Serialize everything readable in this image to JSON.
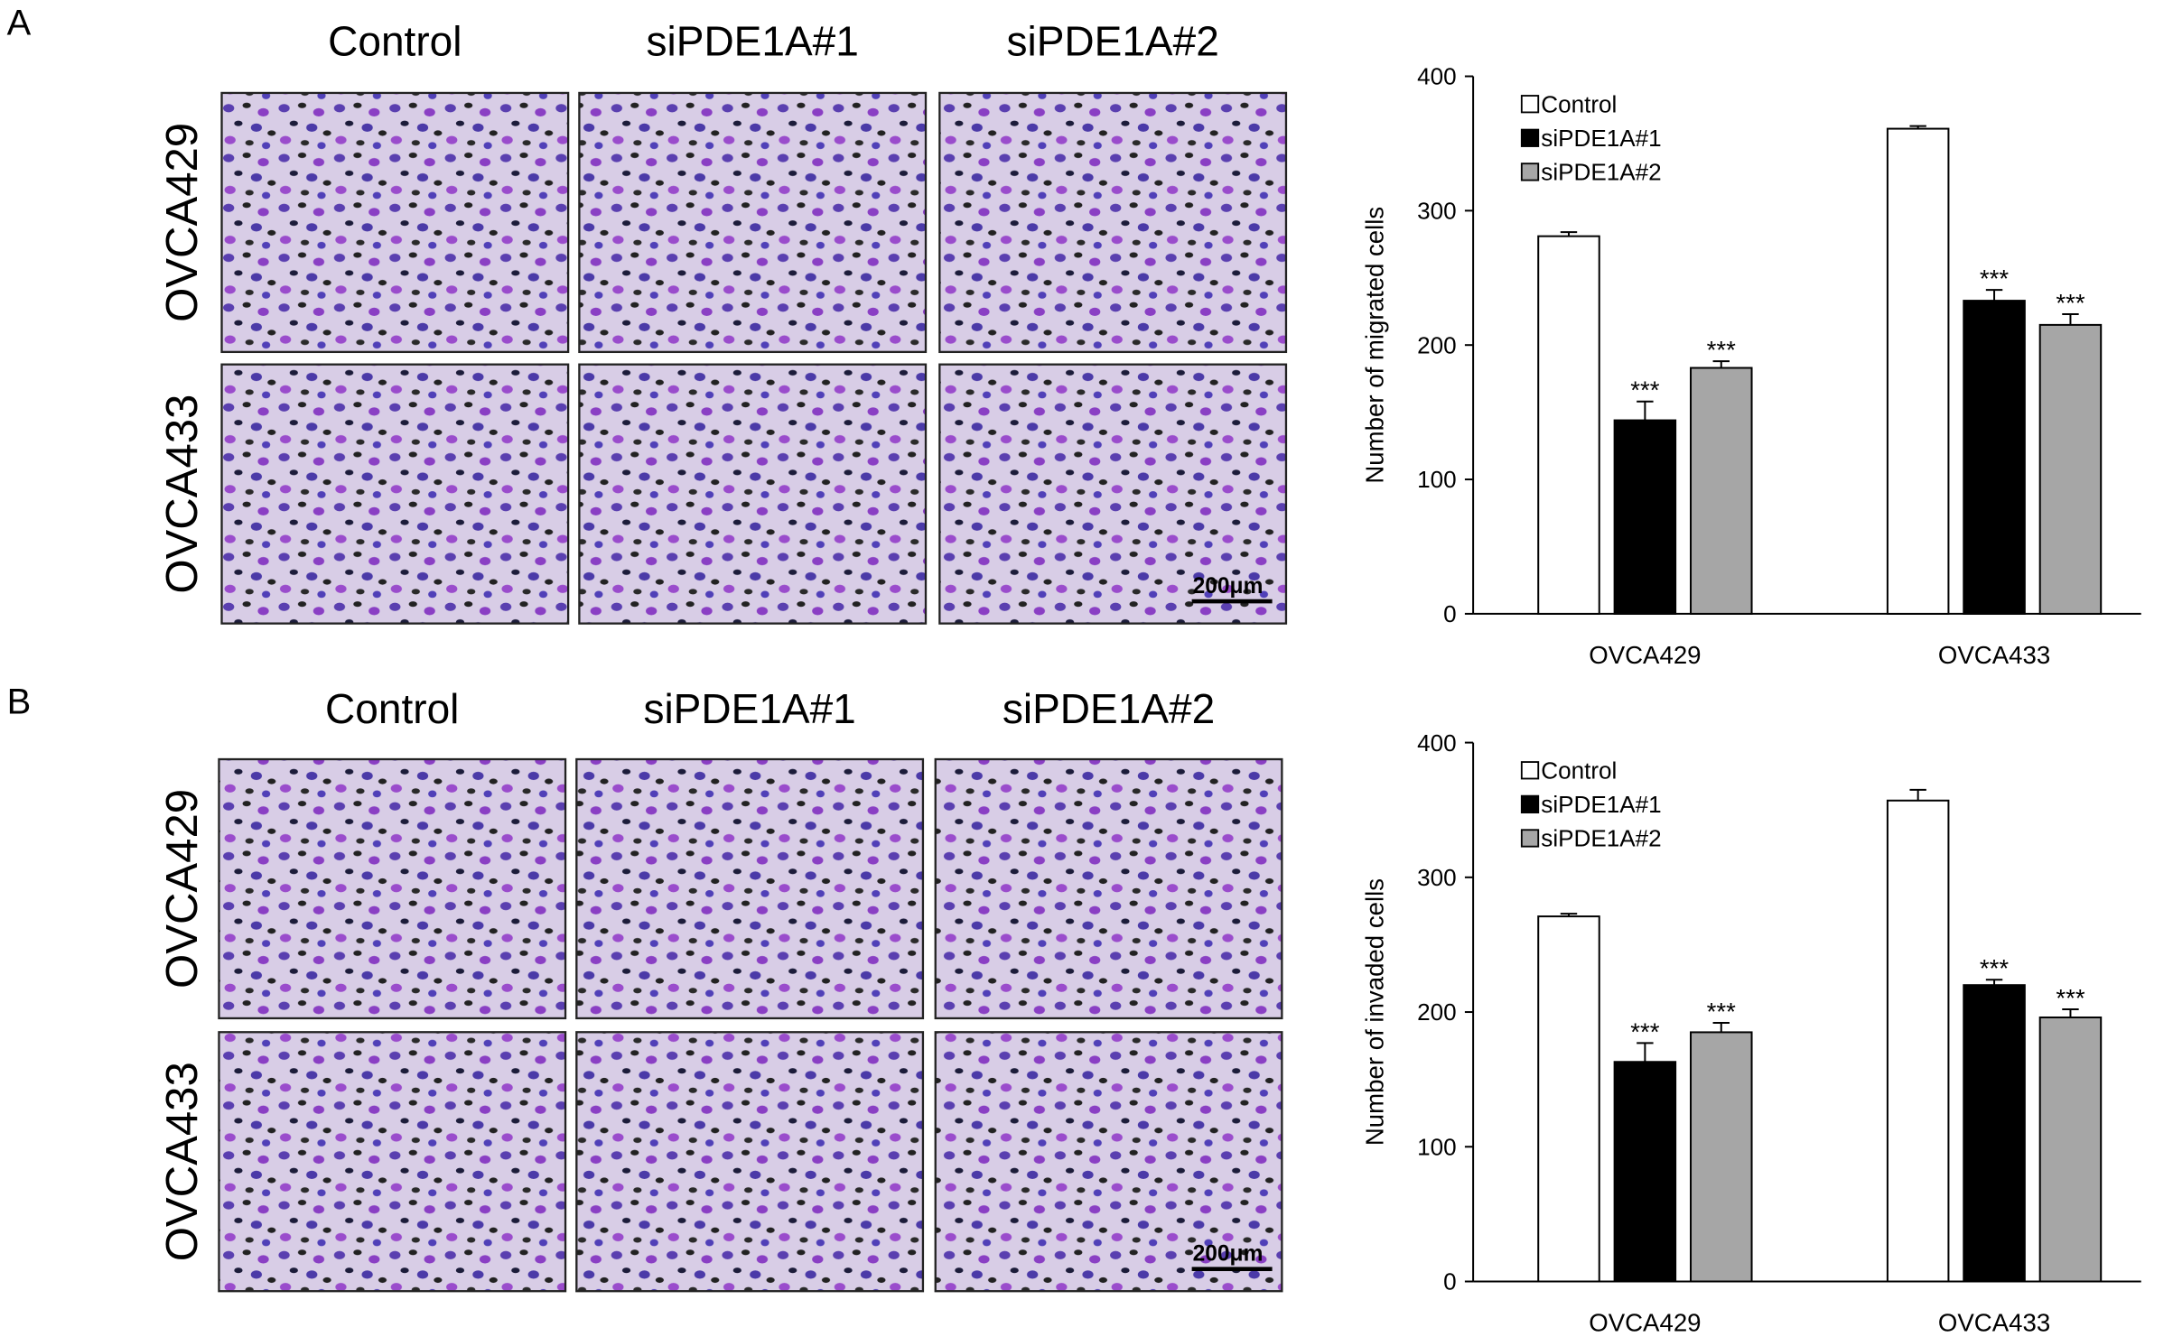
{
  "panels": [
    {
      "label": "A",
      "columns": [
        "Control",
        "siPDE1A#1",
        "siPDE1A#2"
      ],
      "rows": [
        "OVCA429",
        "OVCA433"
      ],
      "scale_bar": "200μm"
    },
    {
      "label": "B",
      "columns": [
        "Control",
        "siPDE1A#1",
        "siPDE1A#2"
      ],
      "rows": [
        "OVCA429",
        "OVCA433"
      ],
      "scale_bar": "200μm"
    }
  ],
  "chart_data": [
    {
      "type": "bar",
      "y_label": "Number of migrated cells",
      "categories": [
        "OVCA429",
        "OVCA433"
      ],
      "series": [
        {
          "name": "Control",
          "color": "#ffffff",
          "values": [
            281,
            361
          ],
          "errors": [
            3,
            2
          ],
          "labels": [
            null,
            null
          ]
        },
        {
          "name": "siPDE1A#1",
          "color": "#000000",
          "values": [
            144,
            233
          ],
          "errors": [
            14,
            8
          ],
          "labels": [
            "***",
            "***"
          ]
        },
        {
          "name": "siPDE1A#2",
          "color": "#a6a6a6",
          "values": [
            183,
            215
          ],
          "errors": [
            5,
            8
          ],
          "labels": [
            "***",
            "***"
          ]
        }
      ],
      "ylim": [
        0,
        400
      ],
      "yticks": [
        0,
        100,
        200,
        300,
        400
      ],
      "legend": "upper left"
    },
    {
      "type": "bar",
      "y_label": "Number of invaded cells",
      "categories": [
        "OVCA429",
        "OVCA433"
      ],
      "series": [
        {
          "name": "Control",
          "color": "#ffffff",
          "values": [
            271,
            357
          ],
          "errors": [
            2,
            8
          ],
          "labels": [
            null,
            null
          ]
        },
        {
          "name": "siPDE1A#1",
          "color": "#000000",
          "values": [
            163,
            220
          ],
          "errors": [
            14,
            4
          ],
          "labels": [
            "***",
            "***"
          ]
        },
        {
          "name": "siPDE1A#2",
          "color": "#a6a6a6",
          "values": [
            185,
            196
          ],
          "errors": [
            7,
            6
          ],
          "labels": [
            "***",
            "***"
          ]
        }
      ],
      "ylim": [
        0,
        400
      ],
      "yticks": [
        0,
        100,
        200,
        300,
        400
      ],
      "legend": "upper left"
    }
  ]
}
